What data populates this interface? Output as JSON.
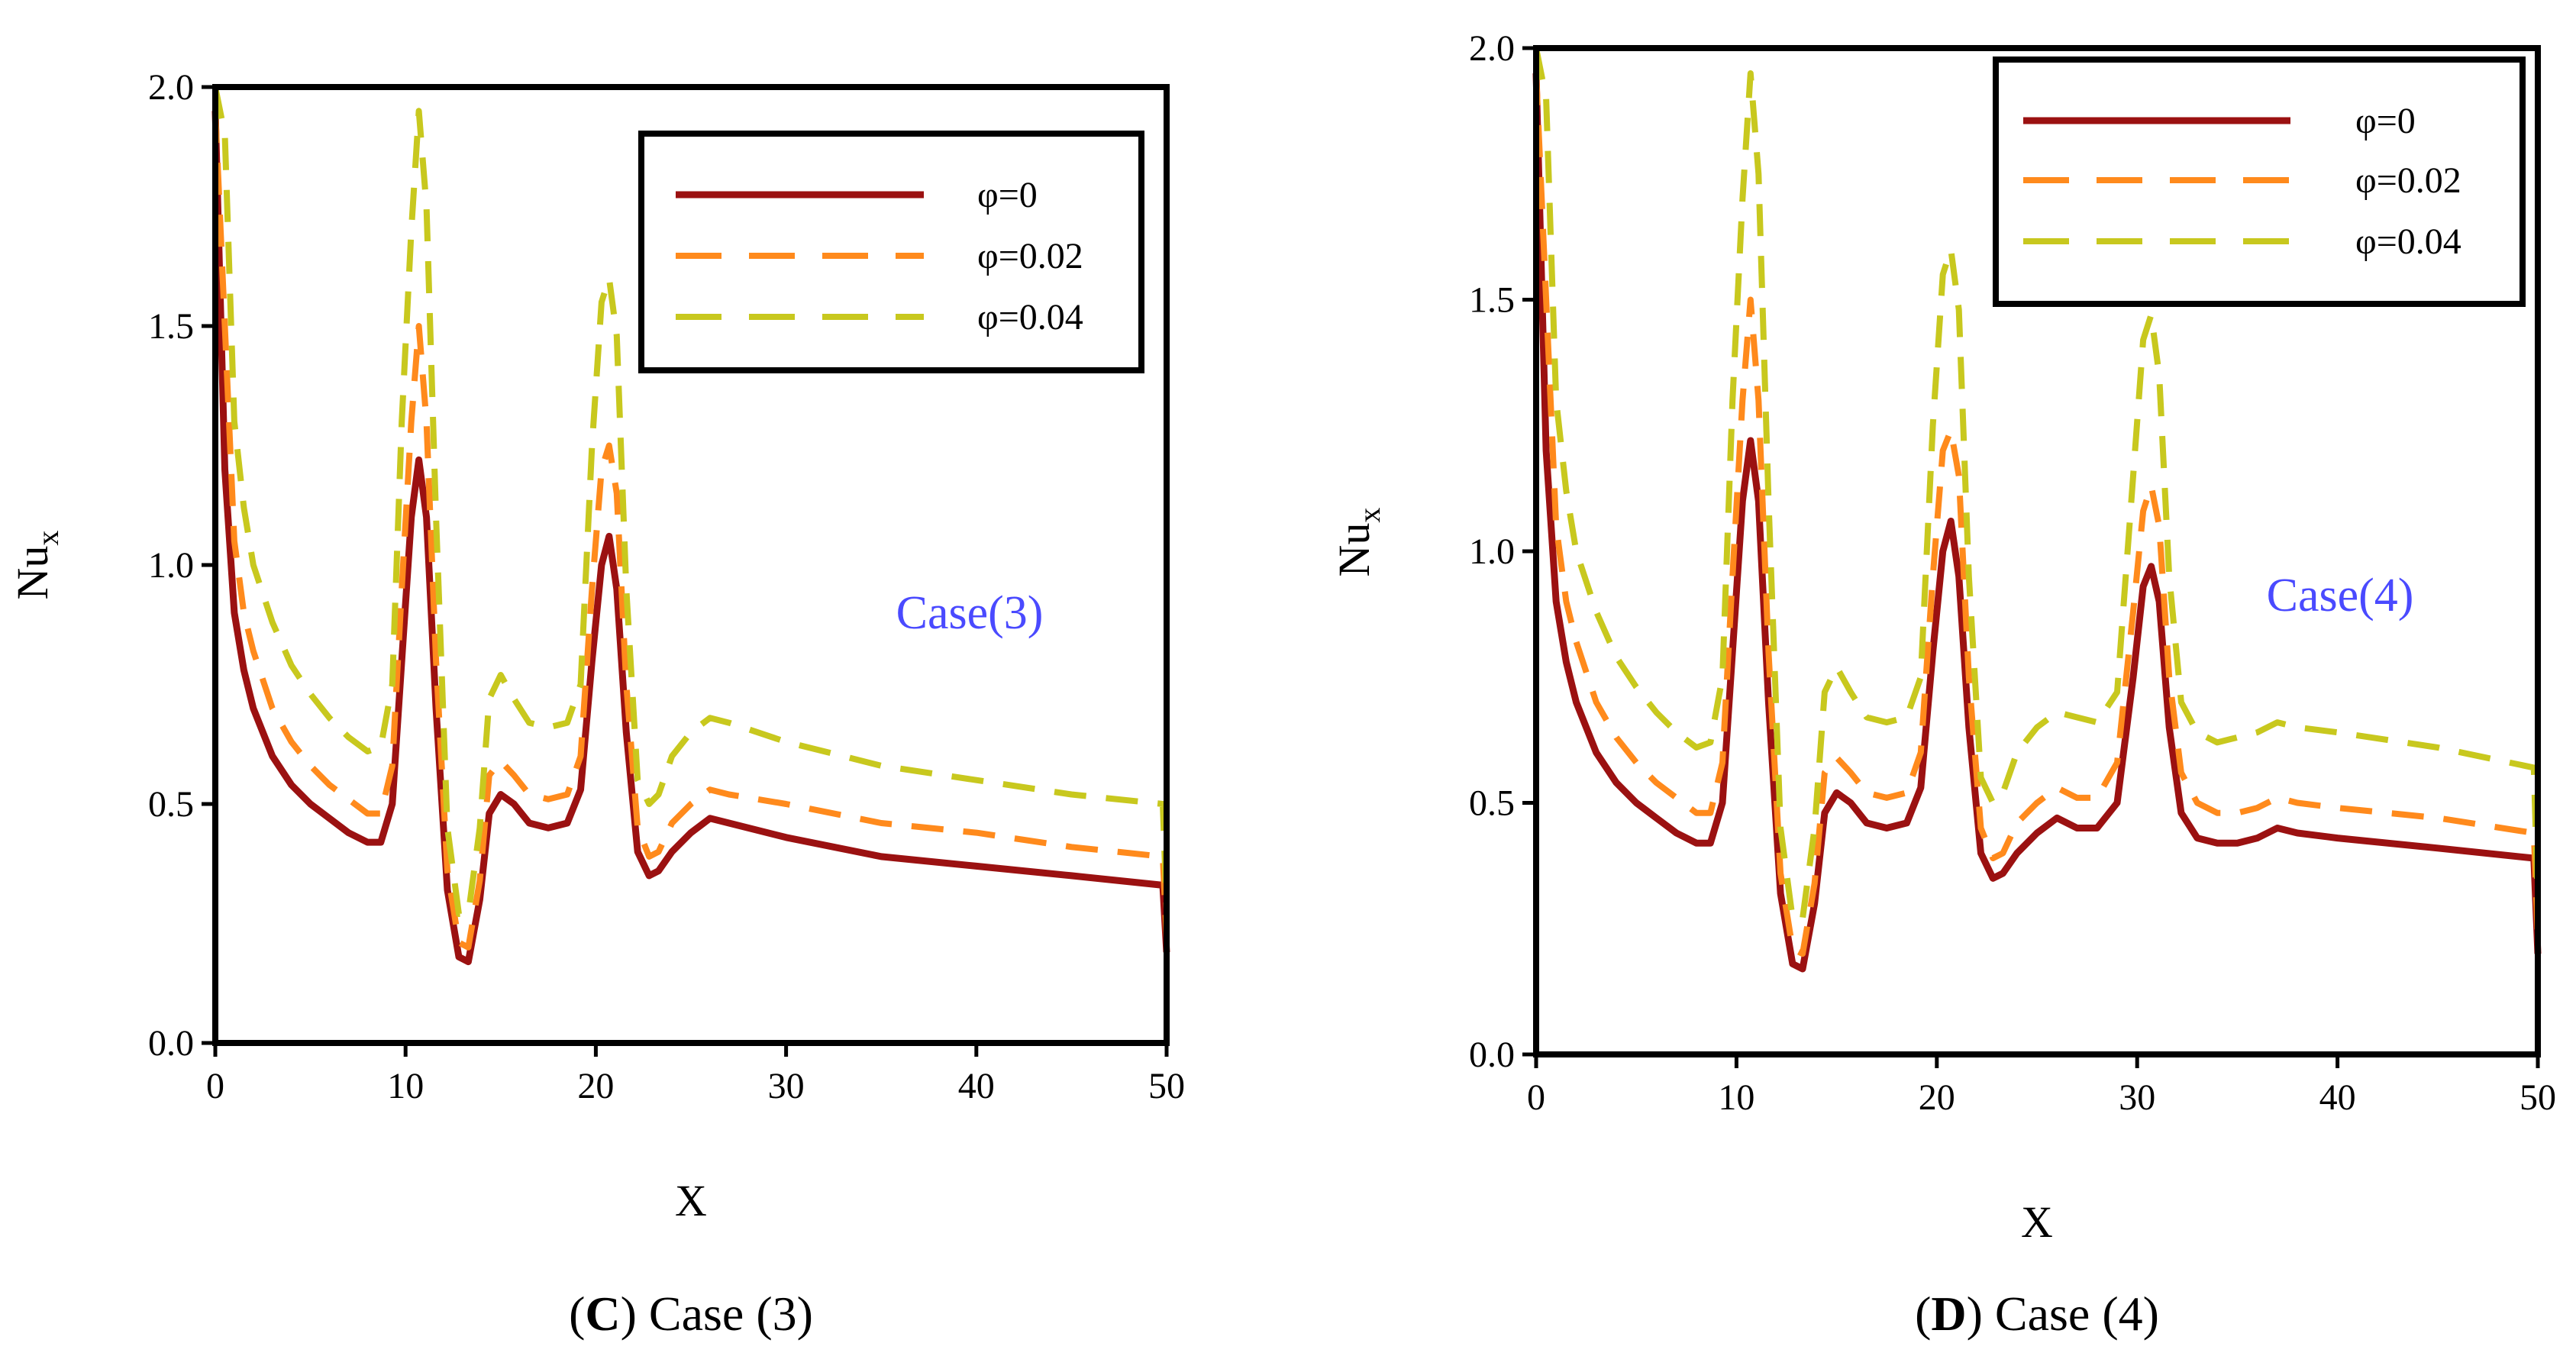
{
  "series_styles": [
    {
      "name": "φ=0",
      "color": "#9b1111",
      "dash": "none"
    },
    {
      "name": "φ=0.02",
      "color": "#ff8a1c",
      "dash": "42 26"
    },
    {
      "name": "φ=0.04",
      "color": "#c8c81e",
      "dash": "42 26"
    }
  ],
  "annotation_color": "#4a4aff",
  "chart_data": [
    {
      "type": "line",
      "xlabel": "X",
      "ylabel": "Nu",
      "ylabel_sub": "x",
      "xlim": [
        0,
        50
      ],
      "ylim": [
        0,
        2
      ],
      "xticks": [
        0,
        10,
        20,
        30,
        40,
        50
      ],
      "yticks": [
        "0.0",
        "0.5",
        "1.0",
        "1.5",
        "2.0"
      ],
      "annotation": "Case(3)",
      "caption_letter": "C",
      "caption_open": "(",
      "caption_text": ") Case (3)",
      "legend_position": "top-right",
      "series": [
        {
          "name": "φ=0",
          "x": [
            0,
            0.5,
            1,
            1.5,
            2,
            3,
            4,
            5,
            6,
            7,
            8,
            8.7,
            9.3,
            9.8,
            10.3,
            10.7,
            11.1,
            11.6,
            12.2,
            12.8,
            13.3,
            13.9,
            14.4,
            15.0,
            15.7,
            16.5,
            17.5,
            18.5,
            19.2,
            19.8,
            20.3,
            20.7,
            21.1,
            21.6,
            22.2,
            22.8,
            23.3,
            24.0,
            25.0,
            26.0,
            27.0,
            30,
            35,
            40,
            45,
            49.8,
            50
          ],
          "values": [
            1.95,
            1.2,
            0.9,
            0.78,
            0.7,
            0.6,
            0.54,
            0.5,
            0.47,
            0.44,
            0.42,
            0.42,
            0.5,
            0.8,
            1.1,
            1.22,
            1.1,
            0.7,
            0.32,
            0.18,
            0.17,
            0.3,
            0.48,
            0.52,
            0.5,
            0.46,
            0.45,
            0.46,
            0.53,
            0.8,
            1.0,
            1.06,
            0.95,
            0.65,
            0.4,
            0.35,
            0.36,
            0.4,
            0.44,
            0.47,
            0.46,
            0.43,
            0.39,
            0.37,
            0.35,
            0.33,
            0.19
          ]
        },
        {
          "name": "φ=0.02",
          "x": [
            0,
            0.5,
            1,
            1.5,
            2,
            3,
            4,
            5,
            6,
            7,
            8,
            8.7,
            9.3,
            9.8,
            10.3,
            10.7,
            11.1,
            11.6,
            12.2,
            12.8,
            13.3,
            13.9,
            14.4,
            15.0,
            15.7,
            16.5,
            17.5,
            18.5,
            19.2,
            19.8,
            20.3,
            20.7,
            21.1,
            21.6,
            22.2,
            22.8,
            23.3,
            24.0,
            25.0,
            26.0,
            27.0,
            30,
            35,
            40,
            45,
            49.8,
            50
          ],
          "values": [
            1.95,
            1.5,
            1.05,
            0.9,
            0.82,
            0.7,
            0.63,
            0.58,
            0.54,
            0.51,
            0.48,
            0.48,
            0.58,
            0.95,
            1.3,
            1.5,
            1.3,
            0.8,
            0.36,
            0.21,
            0.2,
            0.34,
            0.56,
            0.59,
            0.56,
            0.52,
            0.51,
            0.52,
            0.6,
            0.95,
            1.2,
            1.25,
            1.15,
            0.75,
            0.45,
            0.39,
            0.4,
            0.46,
            0.5,
            0.53,
            0.52,
            0.5,
            0.46,
            0.44,
            0.41,
            0.39,
            0.22
          ]
        },
        {
          "name": "φ=0.04",
          "x": [
            0,
            0.5,
            1,
            1.5,
            2,
            3,
            4,
            5,
            6,
            7,
            8,
            8.7,
            9.3,
            9.8,
            10.3,
            10.7,
            11.1,
            11.6,
            12.2,
            12.8,
            13.3,
            13.9,
            14.4,
            15.0,
            15.7,
            16.5,
            17.5,
            18.5,
            19.2,
            19.8,
            20.3,
            20.7,
            21.1,
            21.6,
            22.2,
            22.8,
            23.3,
            24.0,
            25.0,
            26.0,
            27.0,
            30,
            35,
            40,
            45,
            49.8,
            50
          ],
          "values": [
            2.0,
            1.9,
            1.3,
            1.12,
            1.0,
            0.88,
            0.79,
            0.73,
            0.68,
            0.64,
            0.61,
            0.62,
            0.75,
            1.3,
            1.7,
            1.95,
            1.75,
            1.1,
            0.45,
            0.27,
            0.27,
            0.45,
            0.72,
            0.77,
            0.72,
            0.67,
            0.66,
            0.67,
            0.75,
            1.25,
            1.55,
            1.6,
            1.48,
            0.95,
            0.55,
            0.5,
            0.52,
            0.6,
            0.65,
            0.68,
            0.67,
            0.63,
            0.58,
            0.55,
            0.52,
            0.5,
            0.28
          ]
        }
      ]
    },
    {
      "type": "line",
      "xlabel": "X",
      "ylabel": "Nu",
      "ylabel_sub": "x",
      "xlim": [
        0,
        50
      ],
      "ylim": [
        0,
        2
      ],
      "xticks": [
        0,
        10,
        20,
        30,
        40,
        50
      ],
      "yticks": [
        "0.0",
        "0.5",
        "1.0",
        "1.5",
        "2.0"
      ],
      "annotation": "Case(4)",
      "caption_letter": "D",
      "caption_open": "(",
      "caption_text": ") Case (4)",
      "legend_position": "top-right",
      "series": [
        {
          "name": "φ=0",
          "x": [
            0,
            0.5,
            1,
            1.5,
            2,
            3,
            4,
            5,
            6,
            7,
            8,
            8.7,
            9.3,
            9.8,
            10.3,
            10.7,
            11.1,
            11.6,
            12.2,
            12.8,
            13.3,
            13.9,
            14.4,
            15.0,
            15.7,
            16.5,
            17.5,
            18.5,
            19.2,
            19.8,
            20.3,
            20.7,
            21.1,
            21.6,
            22.2,
            22.8,
            23.3,
            24.0,
            25.0,
            26.0,
            27.0,
            28.0,
            29.0,
            29.8,
            30.3,
            30.7,
            31.1,
            31.6,
            32.2,
            33.0,
            34.0,
            35.0,
            36.0,
            37.0,
            38.0,
            40,
            45,
            49.8,
            50
          ],
          "values": [
            1.95,
            1.2,
            0.9,
            0.78,
            0.7,
            0.6,
            0.54,
            0.5,
            0.47,
            0.44,
            0.42,
            0.42,
            0.5,
            0.8,
            1.1,
            1.22,
            1.1,
            0.7,
            0.32,
            0.18,
            0.17,
            0.3,
            0.48,
            0.52,
            0.5,
            0.46,
            0.45,
            0.46,
            0.53,
            0.8,
            1.0,
            1.06,
            0.95,
            0.65,
            0.4,
            0.35,
            0.36,
            0.4,
            0.44,
            0.47,
            0.45,
            0.45,
            0.5,
            0.75,
            0.93,
            0.97,
            0.9,
            0.65,
            0.48,
            0.43,
            0.42,
            0.42,
            0.43,
            0.45,
            0.44,
            0.43,
            0.41,
            0.39,
            0.2
          ]
        },
        {
          "name": "φ=0.02",
          "x": [
            0,
            0.5,
            1,
            1.5,
            2,
            3,
            4,
            5,
            6,
            7,
            8,
            8.7,
            9.3,
            9.8,
            10.3,
            10.7,
            11.1,
            11.6,
            12.2,
            12.8,
            13.3,
            13.9,
            14.4,
            15.0,
            15.7,
            16.5,
            17.5,
            18.5,
            19.2,
            19.8,
            20.3,
            20.7,
            21.1,
            21.6,
            22.2,
            22.8,
            23.3,
            24.0,
            25.0,
            26.0,
            27.0,
            28.0,
            29.0,
            29.8,
            30.3,
            30.7,
            31.1,
            31.6,
            32.2,
            33.0,
            34.0,
            35.0,
            36.0,
            37.0,
            38.0,
            40,
            45,
            49.8,
            50
          ],
          "values": [
            1.95,
            1.5,
            1.05,
            0.9,
            0.82,
            0.7,
            0.63,
            0.58,
            0.54,
            0.51,
            0.48,
            0.48,
            0.58,
            0.95,
            1.3,
            1.5,
            1.3,
            0.8,
            0.36,
            0.21,
            0.2,
            0.34,
            0.56,
            0.59,
            0.56,
            0.52,
            0.51,
            0.52,
            0.6,
            0.95,
            1.2,
            1.24,
            1.15,
            0.75,
            0.45,
            0.39,
            0.4,
            0.46,
            0.5,
            0.53,
            0.51,
            0.51,
            0.58,
            0.88,
            1.08,
            1.13,
            1.05,
            0.75,
            0.56,
            0.5,
            0.48,
            0.48,
            0.49,
            0.51,
            0.5,
            0.49,
            0.47,
            0.44,
            0.23
          ]
        },
        {
          "name": "φ=0.04",
          "x": [
            0,
            0.5,
            1,
            1.5,
            2,
            3,
            4,
            5,
            6,
            7,
            8,
            8.7,
            9.3,
            9.8,
            10.3,
            10.7,
            11.1,
            11.6,
            12.2,
            12.8,
            13.3,
            13.9,
            14.4,
            15.0,
            15.7,
            16.5,
            17.5,
            18.5,
            19.2,
            19.8,
            20.3,
            20.7,
            21.1,
            21.6,
            22.2,
            22.8,
            23.3,
            24.0,
            25.0,
            26.0,
            27.0,
            28.0,
            29.0,
            29.8,
            30.3,
            30.7,
            31.1,
            31.6,
            32.2,
            33.0,
            34.0,
            35.0,
            36.0,
            37.0,
            38.0,
            40,
            45,
            49.8,
            50
          ],
          "values": [
            2.0,
            1.9,
            1.3,
            1.12,
            1.0,
            0.88,
            0.79,
            0.73,
            0.68,
            0.64,
            0.61,
            0.62,
            0.75,
            1.3,
            1.7,
            1.95,
            1.75,
            1.1,
            0.45,
            0.27,
            0.27,
            0.45,
            0.72,
            0.77,
            0.72,
            0.67,
            0.66,
            0.67,
            0.75,
            1.25,
            1.55,
            1.6,
            1.48,
            0.95,
            0.55,
            0.5,
            0.52,
            0.6,
            0.65,
            0.68,
            0.67,
            0.66,
            0.72,
            1.15,
            1.42,
            1.47,
            1.35,
            0.95,
            0.7,
            0.64,
            0.62,
            0.63,
            0.64,
            0.66,
            0.65,
            0.64,
            0.61,
            0.57,
            0.3
          ]
        }
      ]
    }
  ]
}
